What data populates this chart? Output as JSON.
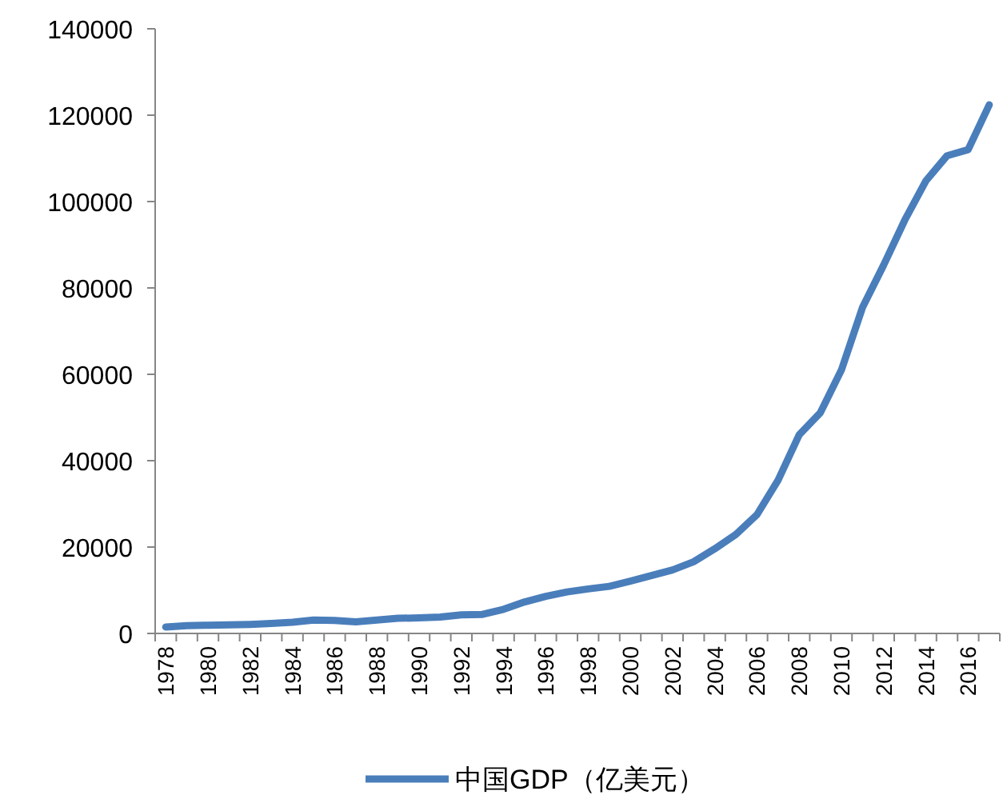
{
  "chart_data": {
    "type": "line",
    "categories": [
      "1978",
      null,
      "1980",
      null,
      "1982",
      null,
      "1984",
      null,
      "1986",
      null,
      "1988",
      null,
      "1990",
      null,
      "1992",
      null,
      "1994",
      null,
      "1996",
      null,
      "1998",
      null,
      "2000",
      null,
      "2002",
      null,
      "2004",
      null,
      "2006",
      null,
      "2008",
      null,
      "2010",
      null,
      "2012",
      null,
      "2014",
      null,
      "2016",
      null
    ],
    "series": [
      {
        "name": "中国GDP（亿美元）",
        "color": "#4a7ebb",
        "values": [
          1500,
          1800,
          1900,
          2000,
          2100,
          2300,
          2600,
          3100,
          3000,
          2700,
          3100,
          3500,
          3600,
          3800,
          4300,
          4400,
          5600,
          7300,
          8600,
          9600,
          10300,
          10900,
          12100,
          13400,
          14700,
          16600,
          19600,
          22900,
          27500,
          35500,
          46000,
          51100,
          61000,
          75500,
          85300,
          95700,
          104800,
          110600,
          112000,
          122400
        ]
      }
    ],
    "ylim": [
      0,
      140000
    ],
    "yticks": [
      0,
      20000,
      40000,
      60000,
      80000,
      100000,
      120000,
      140000
    ],
    "legend": "bottom"
  }
}
